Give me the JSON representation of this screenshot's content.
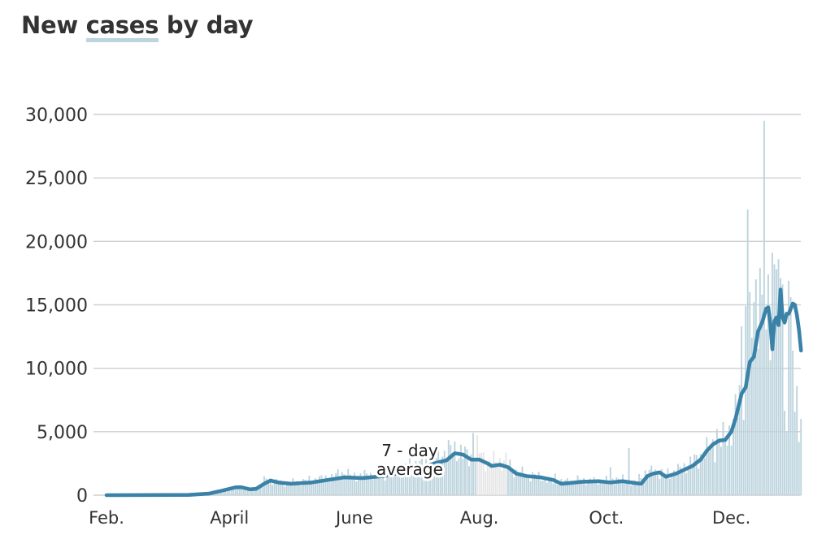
{
  "title": {
    "prefix": "New",
    "key": "cases",
    "suffix": "by day"
  },
  "chart_data": {
    "type": "bar",
    "title": "New cases by day",
    "xlabel": "",
    "ylabel": "",
    "ylim": [
      0,
      30000
    ],
    "yticks": [
      0,
      5000,
      10000,
      15000,
      20000,
      25000,
      30000
    ],
    "ytick_labels": [
      "0",
      "5,000",
      "10,000",
      "15,000",
      "20,000",
      "25,000",
      "30,000"
    ],
    "x_range_days": [
      0,
      330
    ],
    "xticks": [
      {
        "day": 0,
        "label": "Feb."
      },
      {
        "day": 60,
        "label": "April"
      },
      {
        "day": 121,
        "label": "June"
      },
      {
        "day": 182,
        "label": "Aug."
      },
      {
        "day": 244,
        "label": "Oct."
      },
      {
        "day": 305,
        "label": "Dec."
      }
    ],
    "shaded_gap_days": [
      181,
      195
    ],
    "annotation": {
      "lines": [
        "7 - day",
        "average"
      ],
      "day": 148,
      "value": 2600
    },
    "grid": "horizontal",
    "colors": {
      "bars": "#bdd4de",
      "gap": "#e6e6e6",
      "average_line": "#3b82a8",
      "grid": "#cfcfcf",
      "title_key_underline": "#bcd4dd"
    },
    "daily_bar_anchors": [
      [
        0,
        0
      ],
      [
        40,
        30
      ],
      [
        50,
        150
      ],
      [
        55,
        300
      ],
      [
        60,
        450
      ],
      [
        65,
        600
      ],
      [
        70,
        400
      ],
      [
        74,
        600
      ],
      [
        78,
        1300
      ],
      [
        82,
        1100
      ],
      [
        86,
        900
      ],
      [
        95,
        1100
      ],
      [
        110,
        1400
      ],
      [
        115,
        1800
      ],
      [
        120,
        1500
      ],
      [
        130,
        1600
      ],
      [
        140,
        1800
      ],
      [
        150,
        2400
      ],
      [
        160,
        2700
      ],
      [
        165,
        3400
      ],
      [
        170,
        3600
      ],
      [
        175,
        3200
      ],
      [
        178,
        3000
      ],
      [
        181,
        3600
      ],
      [
        186,
        2600
      ],
      [
        195,
        2700
      ],
      [
        200,
        1800
      ],
      [
        210,
        1500
      ],
      [
        220,
        1000
      ],
      [
        230,
        1200
      ],
      [
        240,
        1100
      ],
      [
        250,
        1300
      ],
      [
        258,
        1000
      ],
      [
        262,
        1700
      ],
      [
        268,
        1900
      ],
      [
        272,
        1600
      ],
      [
        280,
        2000
      ],
      [
        288,
        2800
      ],
      [
        295,
        3700
      ],
      [
        300,
        4200
      ],
      [
        305,
        5200
      ],
      [
        310,
        8000
      ],
      [
        315,
        10500
      ],
      [
        318,
        11500
      ],
      [
        321,
        14000
      ],
      [
        324,
        13500
      ],
      [
        327,
        13000
      ],
      [
        330,
        6000
      ]
    ],
    "daily_bar_spikes": [
      {
        "day": 179,
        "value": 4900
      },
      {
        "day": 219,
        "value": 1700
      },
      {
        "day": 246,
        "value": 2200
      },
      {
        "day": 255,
        "value": 3700
      },
      {
        "day": 296,
        "value": 4400
      },
      {
        "day": 298,
        "value": 5200
      },
      {
        "day": 310,
        "value": 13300
      },
      {
        "day": 312,
        "value": 14900
      },
      {
        "day": 313,
        "value": 22500
      },
      {
        "day": 314,
        "value": 16000
      },
      {
        "day": 315,
        "value": 12400
      },
      {
        "day": 316,
        "value": 15200
      },
      {
        "day": 317,
        "value": 17000
      },
      {
        "day": 319,
        "value": 17900
      },
      {
        "day": 321,
        "value": 29500
      },
      {
        "day": 323,
        "value": 17400
      },
      {
        "day": 325,
        "value": 19100
      },
      {
        "day": 326,
        "value": 18200
      },
      {
        "day": 327,
        "value": 17800
      },
      {
        "day": 328,
        "value": 18600
      },
      {
        "day": 329,
        "value": 17100
      },
      {
        "day": 330,
        "value": 16600
      },
      {
        "day": 333,
        "value": 16900
      },
      {
        "day": 334,
        "value": 15600
      },
      {
        "day": 335,
        "value": 11400
      },
      {
        "day": 337,
        "value": 8600
      }
    ],
    "seven_day_average": [
      [
        0,
        0
      ],
      [
        40,
        20
      ],
      [
        50,
        120
      ],
      [
        55,
        300
      ],
      [
        60,
        500
      ],
      [
        63,
        620
      ],
      [
        66,
        620
      ],
      [
        70,
        460
      ],
      [
        73,
        500
      ],
      [
        77,
        900
      ],
      [
        80,
        1150
      ],
      [
        84,
        1000
      ],
      [
        90,
        900
      ],
      [
        100,
        1000
      ],
      [
        110,
        1250
      ],
      [
        116,
        1400
      ],
      [
        125,
        1350
      ],
      [
        135,
        1500
      ],
      [
        145,
        1800
      ],
      [
        155,
        2200
      ],
      [
        160,
        2500
      ],
      [
        166,
        2750
      ],
      [
        170,
        3300
      ],
      [
        174,
        3200
      ],
      [
        178,
        2800
      ],
      [
        182,
        2800
      ],
      [
        186,
        2500
      ],
      [
        188,
        2300
      ],
      [
        192,
        2400
      ],
      [
        196,
        2200
      ],
      [
        200,
        1700
      ],
      [
        205,
        1500
      ],
      [
        212,
        1400
      ],
      [
        218,
        1200
      ],
      [
        222,
        900
      ],
      [
        226,
        950
      ],
      [
        232,
        1050
      ],
      [
        240,
        1100
      ],
      [
        246,
        1000
      ],
      [
        252,
        1100
      ],
      [
        258,
        950
      ],
      [
        261,
        900
      ],
      [
        264,
        1500
      ],
      [
        267,
        1700
      ],
      [
        270,
        1800
      ],
      [
        273,
        1450
      ],
      [
        278,
        1700
      ],
      [
        282,
        2000
      ],
      [
        286,
        2300
      ],
      [
        290,
        2800
      ],
      [
        293,
        3500
      ],
      [
        296,
        4000
      ],
      [
        299,
        4300
      ],
      [
        302,
        4350
      ],
      [
        305,
        5000
      ],
      [
        307,
        6000
      ],
      [
        310,
        8000
      ],
      [
        312,
        8500
      ],
      [
        314,
        10500
      ],
      [
        316,
        10900
      ],
      [
        318,
        12900
      ],
      [
        320,
        13600
      ],
      [
        322,
        14700
      ],
      [
        323,
        14800
      ],
      [
        324,
        13500
      ],
      [
        325,
        11500
      ],
      [
        326,
        13700
      ],
      [
        327,
        14000
      ],
      [
        328,
        13400
      ],
      [
        329,
        16200
      ],
      [
        330,
        14000
      ],
      [
        331,
        13600
      ],
      [
        332,
        14300
      ],
      [
        333,
        14300
      ],
      [
        334,
        14700
      ],
      [
        335,
        15100
      ],
      [
        336,
        15000
      ],
      [
        337,
        14200
      ],
      [
        338,
        13000
      ],
      [
        339,
        11400
      ]
    ]
  }
}
